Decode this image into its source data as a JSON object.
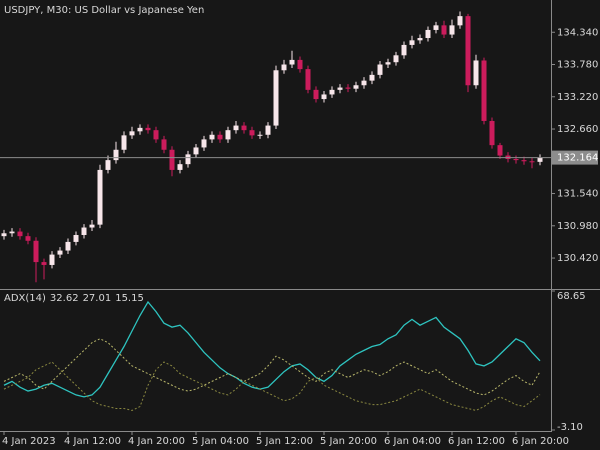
{
  "chart_data": [
    {
      "type": "candlestick",
      "title": "USDJPY, M30:  US Dollar vs Japanese Yen",
      "categories": [
        "4 Jan 2023",
        null,
        null,
        null,
        null,
        null,
        null,
        null,
        "4 Jan 12:00",
        null,
        null,
        null,
        null,
        null,
        null,
        null,
        "4 Jan 20:00",
        null,
        null,
        null,
        null,
        null,
        null,
        null,
        "5 Jan 04:00",
        null,
        null,
        null,
        null,
        null,
        null,
        null,
        "5 Jan 12:00",
        null,
        null,
        null,
        null,
        null,
        null,
        null,
        "5 Jan 20:00",
        null,
        null,
        null,
        null,
        null,
        null,
        null,
        "6 Jan 04:00",
        null,
        null,
        null,
        null,
        null,
        null,
        null,
        "6 Jan 12:00",
        null,
        null,
        null,
        null,
        null,
        null,
        null,
        "6 Jan 20:00",
        null,
        null,
        null
      ],
      "open": [
        130.8,
        130.85,
        130.88,
        130.8,
        130.72,
        130.35,
        130.3,
        130.48,
        130.55,
        130.7,
        130.82,
        130.95,
        131.0,
        131.95,
        132.12,
        132.3,
        132.55,
        132.62,
        132.68,
        132.64,
        132.48,
        132.3,
        131.95,
        132.05,
        132.22,
        132.34,
        132.48,
        132.56,
        132.48,
        132.64,
        132.72,
        132.64,
        132.55,
        132.56,
        132.72,
        133.68,
        133.78,
        133.86,
        133.7,
        133.34,
        133.18,
        133.26,
        133.34,
        133.38,
        133.36,
        133.42,
        133.5,
        133.6,
        133.78,
        133.82,
        133.94,
        134.12,
        134.2,
        134.24,
        134.38,
        134.46,
        134.3,
        134.46,
        134.62,
        133.42,
        133.85,
        132.8,
        132.38,
        132.2,
        132.14,
        132.12,
        132.1,
        132.09
      ],
      "high": [
        130.91,
        130.94,
        130.94,
        130.86,
        130.78,
        130.41,
        130.54,
        130.61,
        130.76,
        130.88,
        131.01,
        131.08,
        132.04,
        132.2,
        132.44,
        132.62,
        132.7,
        132.74,
        132.74,
        132.7,
        132.54,
        132.36,
        132.12,
        132.28,
        132.4,
        132.54,
        132.62,
        132.62,
        132.7,
        132.8,
        132.78,
        132.7,
        132.62,
        132.78,
        133.76,
        133.86,
        134.02,
        133.92,
        133.76,
        133.4,
        133.32,
        133.4,
        133.44,
        133.44,
        133.48,
        133.56,
        133.66,
        133.84,
        133.88,
        134.0,
        134.18,
        134.28,
        134.3,
        134.44,
        134.52,
        134.54,
        134.56,
        134.7,
        134.66,
        133.95,
        133.9,
        132.86,
        132.42,
        132.26,
        132.2,
        132.18,
        132.16,
        132.22
      ],
      "low": [
        130.74,
        130.79,
        130.74,
        130.66,
        130.0,
        130.05,
        130.24,
        130.42,
        130.49,
        130.64,
        130.76,
        130.89,
        130.94,
        131.89,
        132.06,
        132.24,
        132.49,
        132.56,
        132.58,
        132.42,
        132.24,
        131.84,
        131.89,
        131.99,
        132.16,
        132.28,
        132.42,
        132.42,
        132.42,
        132.58,
        132.58,
        132.49,
        132.49,
        132.5,
        132.66,
        133.62,
        133.72,
        133.64,
        133.28,
        133.12,
        133.12,
        133.2,
        133.28,
        133.3,
        133.3,
        133.36,
        133.44,
        133.54,
        133.72,
        133.76,
        133.88,
        134.06,
        134.14,
        134.18,
        134.32,
        134.24,
        134.24,
        134.4,
        133.3,
        133.36,
        132.74,
        132.32,
        132.14,
        132.08,
        132.06,
        132.04,
        131.98,
        132.03
      ],
      "close": [
        130.85,
        130.88,
        130.8,
        130.72,
        130.35,
        130.3,
        130.48,
        130.55,
        130.7,
        130.82,
        130.95,
        131.0,
        131.95,
        132.12,
        132.3,
        132.55,
        132.62,
        132.68,
        132.64,
        132.48,
        132.3,
        131.95,
        132.05,
        132.22,
        132.34,
        132.48,
        132.56,
        132.48,
        132.64,
        132.72,
        132.64,
        132.55,
        132.56,
        132.72,
        133.68,
        133.78,
        133.86,
        133.7,
        133.34,
        133.18,
        133.26,
        133.34,
        133.38,
        133.36,
        133.42,
        133.5,
        133.6,
        133.78,
        133.82,
        133.94,
        134.12,
        134.2,
        134.24,
        134.38,
        134.46,
        134.3,
        134.46,
        134.62,
        133.42,
        133.85,
        132.8,
        132.38,
        132.2,
        132.14,
        132.12,
        132.1,
        132.09,
        132.164
      ],
      "up_color": "#f7e6ea",
      "down_color": "#cc1c5c",
      "ylim": [
        129.9,
        134.9
      ],
      "yticks": [
        {
          "value": 130.42,
          "label": "130.420"
        },
        {
          "value": 130.98,
          "label": "130.980"
        },
        {
          "value": 131.54,
          "label": "131.540"
        },
        {
          "value": 132.1,
          "label": "132.100"
        },
        {
          "value": 132.66,
          "label": "132.660"
        },
        {
          "value": 133.22,
          "label": "133.220"
        },
        {
          "value": 133.78,
          "label": "133.780"
        },
        {
          "value": 134.34,
          "label": "134.340"
        }
      ],
      "last_price": 132.164
    },
    {
      "type": "line",
      "title": "ADX(14)",
      "series": [
        {
          "color": "#2ec4c0",
          "dashed": false,
          "values": [
            20,
            22,
            19,
            17,
            18,
            20,
            21,
            19,
            17,
            15,
            14,
            15,
            19,
            26,
            33,
            40,
            48,
            56,
            63,
            58,
            52,
            50,
            51,
            47,
            42,
            37,
            33,
            29,
            26,
            24,
            21,
            19,
            18,
            19,
            23,
            27,
            30,
            31,
            28,
            24,
            22,
            25,
            30,
            33,
            36,
            38,
            40,
            41,
            44,
            46,
            51,
            54,
            51,
            53,
            55,
            50,
            47,
            44,
            38,
            31,
            30,
            32,
            36,
            40,
            44,
            42,
            37,
            32.62
          ]
        },
        {
          "color": "#b8b66a",
          "dashed": true,
          "values": [
            22,
            24,
            26,
            24,
            20,
            18,
            22,
            26,
            30,
            34,
            38,
            42,
            44,
            42,
            38,
            34,
            30,
            28,
            26,
            24,
            22,
            20,
            18,
            17,
            18,
            20,
            22,
            24,
            26,
            24,
            22,
            24,
            26,
            30,
            35,
            33,
            30,
            27,
            24,
            22,
            26,
            28,
            26,
            24,
            26,
            28,
            27,
            25,
            27,
            30,
            32,
            30,
            28,
            26,
            28,
            25,
            22,
            20,
            18,
            16,
            15,
            17,
            20,
            23,
            25,
            22,
            20,
            27.01
          ]
        },
        {
          "color": "#8a8840",
          "dashed": true,
          "values": [
            18,
            20,
            22,
            24,
            28,
            30,
            32,
            28,
            24,
            20,
            16,
            12,
            10,
            9,
            8,
            8,
            7,
            9,
            20,
            28,
            32,
            30,
            26,
            24,
            22,
            20,
            18,
            16,
            15,
            18,
            22,
            20,
            18,
            16,
            14,
            12,
            13,
            16,
            22,
            24,
            20,
            18,
            16,
            14,
            12,
            11,
            10,
            10,
            11,
            12,
            14,
            16,
            18,
            16,
            14,
            12,
            10,
            9,
            8,
            7,
            9,
            12,
            14,
            12,
            10,
            9,
            12,
            15.15
          ]
        }
      ],
      "ylim": [
        -3.1,
        68.65
      ],
      "yticks": [
        68.65,
        {
          "value": -3.1,
          "label": "-3.10"
        }
      ]
    }
  ]
}
